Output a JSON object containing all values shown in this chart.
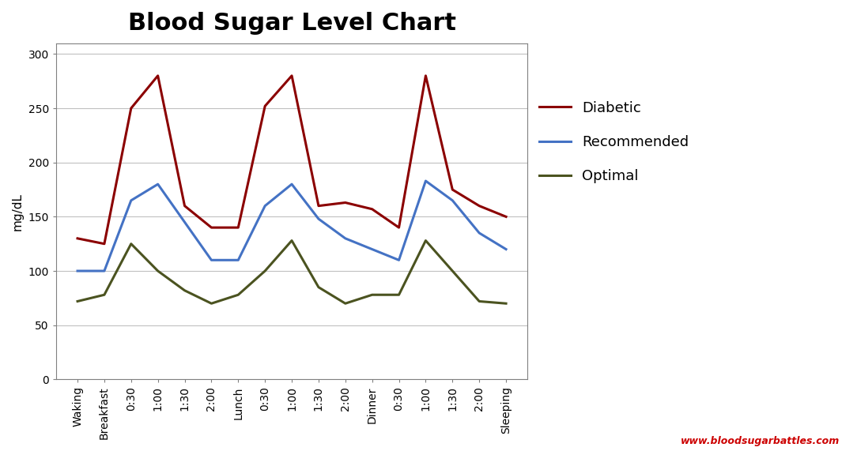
{
  "title": "Blood Sugar Level Chart",
  "ylabel": "mg/dL",
  "watermark": "www.bloodsugarbattles.com",
  "ylim": [
    0,
    310
  ],
  "yticks": [
    0,
    50,
    100,
    150,
    200,
    250,
    300
  ],
  "x_labels": [
    "Waking",
    "Breakfast",
    "0:30",
    "1:00",
    "1:30",
    "2:00",
    "Lunch",
    "0:30",
    "1:00",
    "1:30",
    "2:00",
    "Dinner",
    "0:30",
    "1:00",
    "1:30",
    "2:00",
    "Sleeping"
  ],
  "diabetic": [
    130,
    125,
    250,
    280,
    160,
    140,
    140,
    252,
    280,
    160,
    163,
    157,
    140,
    280,
    175,
    160,
    150
  ],
  "recommended": [
    100,
    100,
    165,
    180,
    145,
    110,
    110,
    160,
    180,
    148,
    130,
    120,
    110,
    183,
    165,
    135,
    120
  ],
  "optimal": [
    72,
    78,
    125,
    100,
    82,
    70,
    78,
    100,
    128,
    85,
    70,
    78,
    78,
    128,
    100,
    72,
    70
  ],
  "diabetic_color": "#8B0000",
  "recommended_color": "#4472C4",
  "optimal_color": "#4B5320",
  "background_color": "#FFFFFF",
  "title_fontsize": 22,
  "axis_label_fontsize": 11,
  "tick_fontsize": 10,
  "legend_fontsize": 13,
  "watermark_color": "#CC0000",
  "line_width": 2.2,
  "grid_color": "#C0C0C0",
  "spine_color": "#808080"
}
